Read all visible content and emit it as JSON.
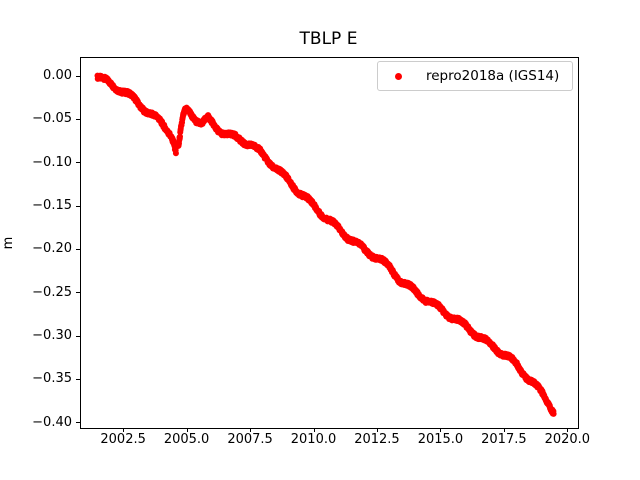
{
  "figure": {
    "title": "TBLP E",
    "ylabel": "m"
  },
  "legend": {
    "label": "repro2018a (IGS14)",
    "marker_color": "#ff0000"
  },
  "chart_data": {
    "type": "scatter",
    "title": "TBLP E",
    "xlabel": "",
    "ylabel": "m",
    "legend_position": "upper right",
    "grid": false,
    "xlim": [
      2000.8,
      2020.38
    ],
    "ylim": [
      -0.4055,
      0.0215
    ],
    "xtick_values": [
      2002.5,
      2005.0,
      2007.5,
      2010.0,
      2012.5,
      2015.0,
      2017.5,
      2020.0
    ],
    "xtick_labels": [
      "2002.5",
      "2005.0",
      "2007.5",
      "2010.0",
      "2012.5",
      "2015.0",
      "2017.5",
      "2020.0"
    ],
    "ytick_values": [
      0.0,
      -0.05,
      -0.1,
      -0.15,
      -0.2,
      -0.25,
      -0.3,
      -0.35,
      -0.4
    ],
    "ytick_labels": [
      "0.00",
      "−0.05",
      "−0.10",
      "−0.15",
      "−0.20",
      "−0.25",
      "−0.30",
      "−0.35",
      "−0.40"
    ],
    "series": [
      {
        "name": "repro2018a (IGS14)",
        "color": "#ff0000",
        "marker": "point",
        "marker_radius_px": 3,
        "segments": [
          [
            [
              2001.45,
              0.001
            ],
            [
              2001.7,
              -0.004
            ],
            [
              2002.0,
              -0.01
            ],
            [
              2002.3,
              -0.014
            ],
            [
              2002.5,
              -0.017
            ],
            [
              2002.8,
              -0.024
            ],
            [
              2003.1,
              -0.032
            ],
            [
              2003.5,
              -0.042
            ],
            [
              2003.8,
              -0.049
            ],
            [
              2004.1,
              -0.058
            ],
            [
              2004.3,
              -0.064
            ],
            [
              2004.45,
              -0.074
            ],
            [
              2004.54,
              -0.088
            ]
          ],
          [
            [
              2004.64,
              -0.082
            ],
            [
              2004.7,
              -0.07
            ],
            [
              2004.76,
              -0.058
            ],
            [
              2004.83,
              -0.047
            ],
            [
              2004.9,
              -0.041
            ],
            [
              2004.98,
              -0.038
            ],
            [
              2005.1,
              -0.041
            ],
            [
              2005.3,
              -0.048
            ],
            [
              2005.55,
              -0.054
            ],
            [
              2005.8,
              -0.049
            ],
            [
              2006.1,
              -0.058
            ],
            [
              2006.5,
              -0.066
            ],
            [
              2007.0,
              -0.072
            ],
            [
              2007.5,
              -0.078
            ],
            [
              2007.9,
              -0.089
            ],
            [
              2008.3,
              -0.1
            ],
            [
              2008.7,
              -0.112
            ],
            [
              2009.1,
              -0.124
            ],
            [
              2009.5,
              -0.136
            ],
            [
              2010.0,
              -0.15
            ],
            [
              2010.5,
              -0.164
            ],
            [
              2011.06,
              -0.179
            ],
            [
              2011.64,
              -0.192
            ],
            [
              2012.0,
              -0.201
            ],
            [
              2012.5,
              -0.209
            ],
            [
              2013.0,
              -0.222
            ],
            [
              2013.42,
              -0.236
            ],
            [
              2014.0,
              -0.249
            ],
            [
              2014.5,
              -0.259
            ],
            [
              2015.0,
              -0.269
            ],
            [
              2015.5,
              -0.279
            ],
            [
              2016.0,
              -0.289
            ],
            [
              2016.58,
              -0.302
            ],
            [
              2017.0,
              -0.311
            ],
            [
              2017.56,
              -0.322
            ],
            [
              2018.0,
              -0.334
            ],
            [
              2018.55,
              -0.352
            ],
            [
              2019.0,
              -0.367
            ],
            [
              2019.2,
              -0.375
            ],
            [
              2019.42,
              -0.386
            ]
          ]
        ]
      }
    ],
    "seasonal": {
      "amplitude": 0.0028,
      "period": 1.0,
      "phase": 0.55
    },
    "noise_m": 0.0021,
    "sample_step_years": 0.01
  }
}
